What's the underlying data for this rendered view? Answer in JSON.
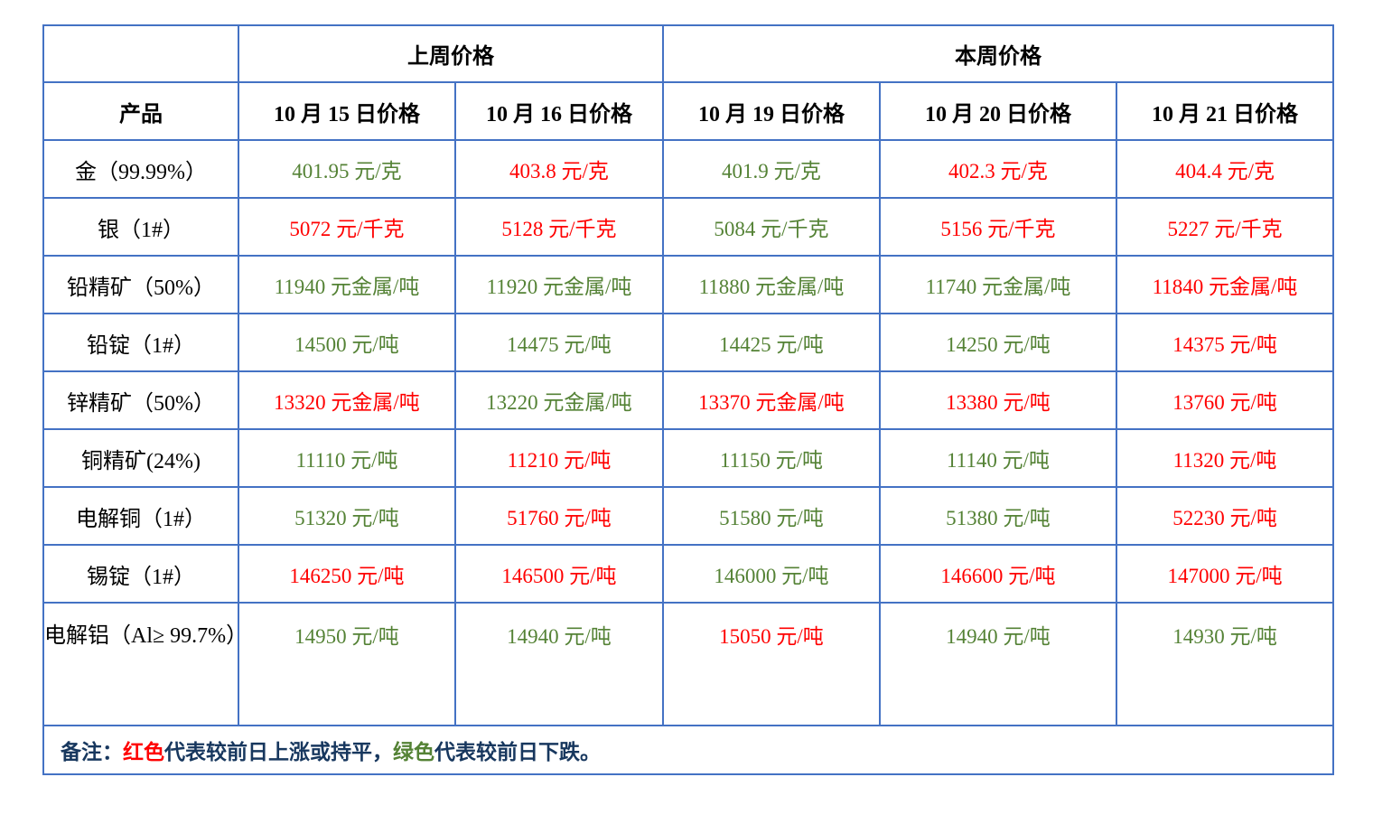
{
  "table": {
    "group_headers": [
      {
        "label": "",
        "span": 1
      },
      {
        "label": "上周价格",
        "span": 2
      },
      {
        "label": "本周价格",
        "span": 3
      }
    ],
    "column_headers": [
      "产品",
      "10 月 15 日价格",
      "10 月 16 日价格",
      "10 月 19 日价格",
      "10 月 20 日价格",
      "10 月 21 日价格"
    ],
    "rows": [
      {
        "product": "金（99.99%）",
        "values": [
          {
            "text": "401.95 元/克",
            "color": "green"
          },
          {
            "text": "403.8 元/克",
            "color": "red"
          },
          {
            "text": "401.9 元/克",
            "color": "green"
          },
          {
            "text": "402.3 元/克",
            "color": "red"
          },
          {
            "text": "404.4 元/克",
            "color": "red"
          }
        ]
      },
      {
        "product": "银（1#）",
        "values": [
          {
            "text": "5072 元/千克",
            "color": "red"
          },
          {
            "text": "5128 元/千克",
            "color": "red"
          },
          {
            "text": "5084 元/千克",
            "color": "green"
          },
          {
            "text": "5156 元/千克",
            "color": "red"
          },
          {
            "text": "5227 元/千克",
            "color": "red"
          }
        ]
      },
      {
        "product": "铅精矿（50%）",
        "values": [
          {
            "text": "11940 元金属/吨",
            "color": "green"
          },
          {
            "text": "11920 元金属/吨",
            "color": "green"
          },
          {
            "text": "11880 元金属/吨",
            "color": "green"
          },
          {
            "text": "11740 元金属/吨",
            "color": "green"
          },
          {
            "text": "11840 元金属/吨",
            "color": "red"
          }
        ]
      },
      {
        "product": "铅锭（1#）",
        "values": [
          {
            "text": "14500 元/吨",
            "color": "green"
          },
          {
            "text": "14475 元/吨",
            "color": "green"
          },
          {
            "text": "14425 元/吨",
            "color": "green"
          },
          {
            "text": "14250 元/吨",
            "color": "green"
          },
          {
            "text": "14375 元/吨",
            "color": "red"
          }
        ]
      },
      {
        "product": "锌精矿（50%）",
        "values": [
          {
            "text": "13320 元金属/吨",
            "color": "red"
          },
          {
            "text": "13220 元金属/吨",
            "color": "green"
          },
          {
            "text": "13370 元金属/吨",
            "color": "red"
          },
          {
            "text": "13380 元/吨",
            "color": "red"
          },
          {
            "text": "13760 元/吨",
            "color": "red"
          }
        ]
      },
      {
        "product": "铜精矿(24%)",
        "values": [
          {
            "text": "11110 元/吨",
            "color": "green"
          },
          {
            "text": "11210 元/吨",
            "color": "red"
          },
          {
            "text": "11150 元/吨",
            "color": "green"
          },
          {
            "text": "11140 元/吨",
            "color": "green"
          },
          {
            "text": "11320 元/吨",
            "color": "red"
          }
        ]
      },
      {
        "product": "电解铜（1#）",
        "values": [
          {
            "text": "51320 元/吨",
            "color": "green"
          },
          {
            "text": "51760 元/吨",
            "color": "red"
          },
          {
            "text": "51580 元/吨",
            "color": "green"
          },
          {
            "text": "51380 元/吨",
            "color": "green"
          },
          {
            "text": "52230 元/吨",
            "color": "red"
          }
        ]
      },
      {
        "product": "锡锭（1#）",
        "values": [
          {
            "text": "146250 元/吨",
            "color": "red"
          },
          {
            "text": "146500 元/吨",
            "color": "red"
          },
          {
            "text": "146000 元/吨",
            "color": "green"
          },
          {
            "text": "146600 元/吨",
            "color": "red"
          },
          {
            "text": "147000 元/吨",
            "color": "red"
          }
        ]
      },
      {
        "product": "电解铝（Al≥ 99.7%）",
        "values": [
          {
            "text": "14950 元/吨",
            "color": "green"
          },
          {
            "text": "14940 元/吨",
            "color": "green"
          },
          {
            "text": "15050 元/吨",
            "color": "red"
          },
          {
            "text": "14940 元/吨",
            "color": "green"
          },
          {
            "text": "14930 元/吨",
            "color": "green"
          }
        ]
      }
    ],
    "note": {
      "segments": [
        {
          "text": "备注：",
          "color": "dark"
        },
        {
          "text": "红色",
          "color": "red"
        },
        {
          "text": "代表较前日上涨或持平，",
          "color": "dark"
        },
        {
          "text": "绿色",
          "color": "green"
        },
        {
          "text": "代表较前日下跌。",
          "color": "dark"
        }
      ]
    }
  },
  "colors": {
    "red": "#ff0000",
    "green": "#548235",
    "dark": "#17375e",
    "border": "#4472c4",
    "header_text": "#000000"
  }
}
